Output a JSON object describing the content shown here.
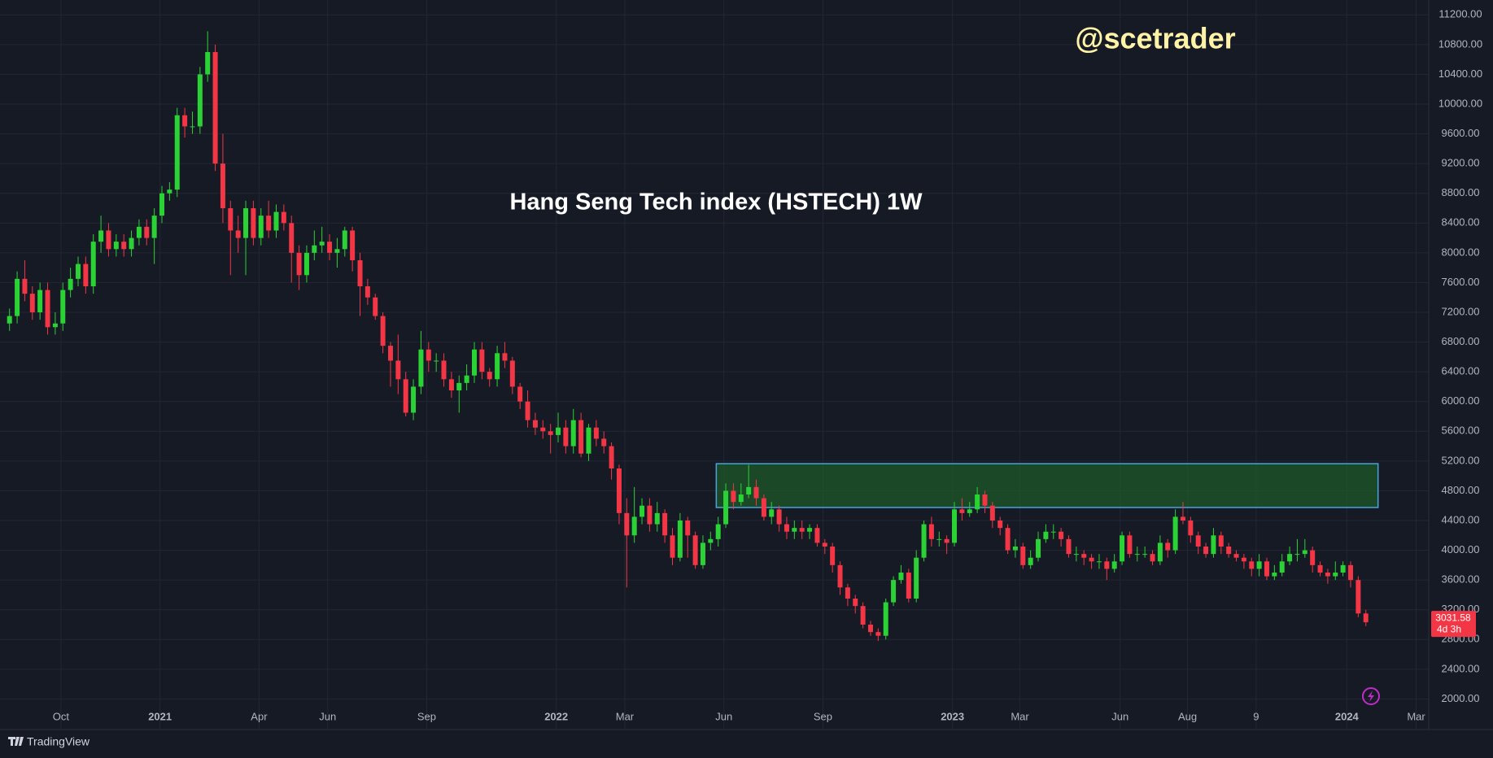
{
  "chart_data": {
    "type": "candlestick",
    "title": "Hang Seng Tech index (HSTECH) 1W",
    "watermark": "@scetrader",
    "brand": "TradingView",
    "countdown": "4d 3h",
    "up_color": "#2bd235",
    "down_color": "#f23645",
    "grid": true,
    "xlim": [
      -1.25,
      186.25
    ],
    "xticks": [
      {
        "value": 6.75,
        "label": "Oct"
      },
      {
        "value": 19.75,
        "label": "2021"
      },
      {
        "value": 32.75,
        "label": "Apr"
      },
      {
        "value": 41.75,
        "label": "Jun"
      },
      {
        "value": 54.75,
        "label": "Sep"
      },
      {
        "value": 71.75,
        "label": "2022"
      },
      {
        "value": 80.75,
        "label": "Mar"
      },
      {
        "value": 93.75,
        "label": "Jun"
      },
      {
        "value": 106.75,
        "label": "Sep"
      },
      {
        "value": 123.75,
        "label": "2023"
      },
      {
        "value": 132.6,
        "label": "Mar"
      },
      {
        "value": 145.75,
        "label": "Jun"
      },
      {
        "value": 154.6,
        "label": "Aug"
      },
      {
        "value": 163.6,
        "label": "9"
      },
      {
        "value": 175.5,
        "label": "2024"
      },
      {
        "value": 184.6,
        "label": "Mar"
      }
    ],
    "ylim": [
      1600,
      11400
    ],
    "yticks": [
      {
        "value": 2000,
        "label": "2000.00"
      },
      {
        "value": 2400,
        "label": "2400.00"
      },
      {
        "value": 2800,
        "label": "2800.00"
      },
      {
        "value": 3200,
        "label": "3200.00"
      },
      {
        "value": 3600,
        "label": "3600.00"
      },
      {
        "value": 4000,
        "label": "4000.00"
      },
      {
        "value": 4400,
        "label": "4400.00"
      },
      {
        "value": 4800,
        "label": "4800.00"
      },
      {
        "value": 5200,
        "label": "5200.00"
      },
      {
        "value": 5600,
        "label": "5600.00"
      },
      {
        "value": 6000,
        "label": "6000.00"
      },
      {
        "value": 6400,
        "label": "6400.00"
      },
      {
        "value": 6800,
        "label": "6800.00"
      },
      {
        "value": 7200,
        "label": "7200.00"
      },
      {
        "value": 7600,
        "label": "7600.00"
      },
      {
        "value": 8000,
        "label": "8000.00"
      },
      {
        "value": 8400,
        "label": "8400.00"
      },
      {
        "value": 8800,
        "label": "8800.00"
      },
      {
        "value": 9200,
        "label": "9200.00"
      },
      {
        "value": 9600,
        "label": "9600.00"
      },
      {
        "value": 10000,
        "label": "10000.00"
      },
      {
        "value": 10400,
        "label": "10400.00"
      },
      {
        "value": 10800,
        "label": "10800.00"
      },
      {
        "value": 11200,
        "label": "11200.00"
      }
    ],
    "zone": {
      "xlim": [
        92.75,
        179.6
      ],
      "ylim": [
        4575,
        5164
      ],
      "color": "#1e5a2a",
      "border": "#4aa3df"
    },
    "ohlc": {
      "open": [
        7050,
        7150,
        7650,
        7450,
        7200,
        7500,
        7000,
        7050,
        7500,
        7650,
        7850,
        7550,
        8150,
        8300,
        8050,
        8150,
        8050,
        8200,
        8350,
        8200,
        8500,
        8800,
        8850,
        9850,
        9700,
        9700,
        10400,
        10700,
        9200,
        8600,
        8300,
        8200,
        8600,
        8200,
        8500,
        8300,
        8550,
        8400,
        8000,
        7700,
        8000,
        8100,
        8150,
        8000,
        8050,
        8300,
        7900,
        7550,
        7400,
        7150,
        6750,
        6550,
        6300,
        5850,
        6200,
        6700,
        6550,
        6550,
        6300,
        6150,
        6250,
        6350,
        6700,
        6400,
        6300,
        6650,
        6550,
        6200,
        6000,
        5750,
        5650,
        5600,
        5550,
        5650,
        5400,
        5750,
        5300,
        5650,
        5500,
        5400,
        5100,
        4500,
        4200,
        4450,
        4600,
        4350,
        4500,
        4200,
        3900,
        4400,
        4200,
        3800,
        4100,
        4150,
        4350,
        4800,
        4650,
        4750,
        4850,
        4700,
        4450,
        4550,
        4350,
        4250,
        4300,
        4250,
        4300,
        4100,
        4050,
        3800,
        3500,
        3350,
        3250,
        3000,
        2900,
        2850,
        3300,
        3600,
        3700,
        3350,
        3900,
        4350,
        4150,
        4150,
        4100,
        4550,
        4500,
        4550,
        4750,
        4600,
        4400,
        4300,
        4000,
        4050,
        3800,
        3900,
        4150,
        4250,
        4250,
        4150,
        3950,
        3950,
        3900,
        3850,
        3850,
        3750,
        3850,
        4200,
        3950,
        3950,
        3950,
        3850,
        4100,
        4000,
        4450,
        4400,
        4200,
        4050,
        3950,
        4200,
        4050,
        3950,
        3900,
        3850,
        3750,
        3850,
        3650,
        3700,
        3850,
        3950,
        3950,
        4000,
        3800,
        3700,
        3650,
        3700,
        3800,
        3600,
        3150
      ],
      "high": [
        7250,
        7750,
        7900,
        7550,
        7600,
        7600,
        7200,
        7600,
        7800,
        7950,
        7950,
        8250,
        8500,
        8400,
        8250,
        8250,
        8300,
        8450,
        8450,
        8600,
        8900,
        8950,
        9950,
        9950,
        9900,
        10500,
        10980,
        10800,
        9600,
        8700,
        8500,
        8700,
        8700,
        8600,
        8700,
        8650,
        8650,
        8500,
        8100,
        8100,
        8300,
        8350,
        8250,
        8200,
        8350,
        8350,
        8000,
        7650,
        7450,
        7200,
        6800,
        6900,
        6400,
        6300,
        6950,
        6800,
        6650,
        6650,
        6400,
        6350,
        6500,
        6800,
        6800,
        6450,
        6750,
        6800,
        6600,
        6250,
        6150,
        5850,
        5750,
        5700,
        5850,
        5750,
        5900,
        5850,
        5700,
        5750,
        5600,
        5450,
        5150,
        4700,
        4850,
        4700,
        4700,
        4650,
        4550,
        4300,
        4500,
        4450,
        4250,
        4200,
        4250,
        4450,
        4900,
        4900,
        4900,
        5150,
        4950,
        4750,
        4650,
        4600,
        4450,
        4400,
        4400,
        4350,
        4350,
        4150,
        4100,
        3850,
        3550,
        3400,
        3300,
        3050,
        2950,
        3350,
        3650,
        3800,
        3750,
        4000,
        4400,
        4450,
        4250,
        4200,
        4650,
        4700,
        4650,
        4850,
        4800,
        4650,
        4450,
        4350,
        4150,
        4100,
        4000,
        4250,
        4350,
        4350,
        4300,
        4200,
        4050,
        4000,
        3950,
        3950,
        3900,
        3950,
        4250,
        4250,
        4050,
        4050,
        4000,
        4200,
        4150,
        4550,
        4650,
        4450,
        4250,
        4100,
        4300,
        4250,
        4100,
        4000,
        3950,
        3900,
        3950,
        3900,
        3800,
        3950,
        4050,
        4150,
        4150,
        4050,
        3850,
        3750,
        3850,
        3850,
        3850,
        3650,
        3200
      ],
      "low": [
        6950,
        7050,
        7350,
        7100,
        7100,
        6900,
        6900,
        6950,
        7400,
        7550,
        7450,
        7450,
        8000,
        7950,
        7950,
        7950,
        7950,
        8100,
        8100,
        7850,
        8400,
        8700,
        8750,
        9550,
        9600,
        9600,
        10300,
        9100,
        8400,
        7700,
        8000,
        7700,
        8100,
        8100,
        8200,
        8200,
        8300,
        7600,
        7500,
        7600,
        7900,
        8000,
        7900,
        7800,
        7950,
        7750,
        7150,
        7300,
        7100,
        6650,
        6200,
        6100,
        5800,
        5750,
        6100,
        6400,
        6400,
        6200,
        6050,
        5850,
        6150,
        6250,
        6300,
        6200,
        6200,
        6450,
        6100,
        5900,
        5650,
        5550,
        5500,
        5300,
        5450,
        5300,
        5300,
        5250,
        5200,
        5400,
        5300,
        4950,
        4350,
        3500,
        4100,
        4350,
        4250,
        4250,
        4100,
        3800,
        3850,
        3900,
        3750,
        3750,
        4000,
        4050,
        4300,
        4550,
        4600,
        4700,
        4600,
        4400,
        4350,
        4250,
        4150,
        4150,
        4150,
        4150,
        4050,
        3950,
        3700,
        3400,
        3250,
        3150,
        2950,
        2850,
        2780,
        2800,
        3250,
        3550,
        3300,
        3300,
        3850,
        4050,
        4050,
        3950,
        4050,
        4400,
        4450,
        4500,
        4500,
        4300,
        4200,
        3950,
        3900,
        3750,
        3750,
        3850,
        4100,
        4150,
        4050,
        3900,
        3850,
        3800,
        3750,
        3750,
        3600,
        3700,
        3800,
        3900,
        3850,
        3900,
        3800,
        3800,
        3900,
        3950,
        4350,
        4100,
        3950,
        3900,
        3900,
        3950,
        3900,
        3850,
        3750,
        3650,
        3650,
        3600,
        3600,
        3650,
        3800,
        3850,
        3900,
        3700,
        3650,
        3550,
        3600,
        3650,
        3500,
        3100,
        2980
      ],
      "close": [
        7150,
        7650,
        7450,
        7200,
        7500,
        7000,
        7050,
        7500,
        7650,
        7850,
        7550,
        8150,
        8300,
        8050,
        8150,
        8050,
        8200,
        8350,
        8200,
        8500,
        8800,
        8850,
        9850,
        9700,
        9700,
        10400,
        10700,
        9200,
        8600,
        8300,
        8200,
        8600,
        8200,
        8500,
        8300,
        8550,
        8400,
        8000,
        7700,
        8000,
        8100,
        8150,
        8000,
        8050,
        8300,
        7900,
        7550,
        7400,
        7150,
        6750,
        6550,
        6300,
        5850,
        6200,
        6700,
        6550,
        6550,
        6300,
        6150,
        6250,
        6350,
        6700,
        6400,
        6300,
        6650,
        6550,
        6200,
        6000,
        5750,
        5650,
        5600,
        5550,
        5650,
        5400,
        5750,
        5300,
        5650,
        5500,
        5400,
        5100,
        4500,
        4200,
        4450,
        4600,
        4350,
        4500,
        4200,
        3900,
        4400,
        4200,
        3800,
        4100,
        4150,
        4350,
        4800,
        4650,
        4750,
        4850,
        4700,
        4450,
        4550,
        4350,
        4250,
        4300,
        4250,
        4300,
        4100,
        4050,
        3800,
        3500,
        3350,
        3250,
        3000,
        2900,
        2850,
        3300,
        3600,
        3700,
        3350,
        3900,
        4350,
        4150,
        4150,
        4100,
        4550,
        4500,
        4550,
        4750,
        4600,
        4400,
        4300,
        4000,
        4050,
        3800,
        3900,
        4150,
        4250,
        4250,
        4150,
        3950,
        3950,
        3900,
        3850,
        3850,
        3750,
        3850,
        4200,
        3950,
        3950,
        3950,
        3850,
        4100,
        4000,
        4450,
        4400,
        4200,
        4050,
        3950,
        4200,
        4050,
        3950,
        3900,
        3850,
        3750,
        3850,
        3650,
        3700,
        3850,
        3950,
        3950,
        4000,
        3800,
        3700,
        3650,
        3700,
        3800,
        3600,
        3150,
        3031.58
      ]
    }
  }
}
